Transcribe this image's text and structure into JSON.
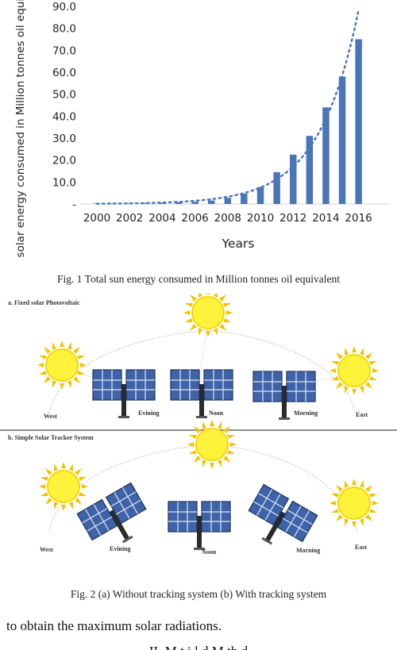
{
  "figure1": {
    "caption": "Fig. 1 Total sun energy consumed in Million tonnes oil equivalent",
    "chart_data": {
      "type": "bar",
      "xlabel": "Years",
      "ylabel": "Total solar energy consumed in Million tonnes oil equivelent",
      "ylim": [
        0,
        90
      ],
      "yticks": [
        "-",
        "10.0",
        "20.0",
        "30.0",
        "40.0",
        "50.0",
        "60.0",
        "70.0",
        "80.0",
        "90.0"
      ],
      "xticks": [
        "2000",
        "2002",
        "2004",
        "2006",
        "2008",
        "2010",
        "2012",
        "2014",
        "2016"
      ],
      "categories": [
        "2000",
        "2001",
        "2002",
        "2003",
        "2004",
        "2005",
        "2006",
        "2007",
        "2008",
        "2009",
        "2010",
        "2011",
        "2012",
        "2013",
        "2014",
        "2015",
        "2016"
      ],
      "values": [
        0.2,
        0.2,
        0.3,
        0.4,
        0.5,
        0.8,
        1.0,
        1.6,
        2.8,
        4.7,
        7.7,
        14.5,
        22.5,
        31.0,
        44.0,
        58.0,
        75.0
      ],
      "trendline": "exponential",
      "bar_color": "#4a76b8",
      "grid": false,
      "legend": "none"
    }
  },
  "figure2": {
    "caption": "Fig. 2 (a) Without tracking system (b) With tracking system",
    "panel_a": {
      "title": "a. Fixed solar Photovoltaic",
      "labels": {
        "west": "West",
        "evening": "Evining",
        "noon": "Noon",
        "morning": "Morning",
        "east": "East"
      }
    },
    "panel_b": {
      "title": "b. Simple Solar Tracker System",
      "labels": {
        "west": "West",
        "evening": "Evining",
        "noon": "Noon",
        "morning": "Morning",
        "east": "East"
      }
    }
  },
  "body_text": {
    "line1": "to obtain the maximum solar radiations.",
    "heading_partial": "II.    M    t  i l   d M th d"
  }
}
